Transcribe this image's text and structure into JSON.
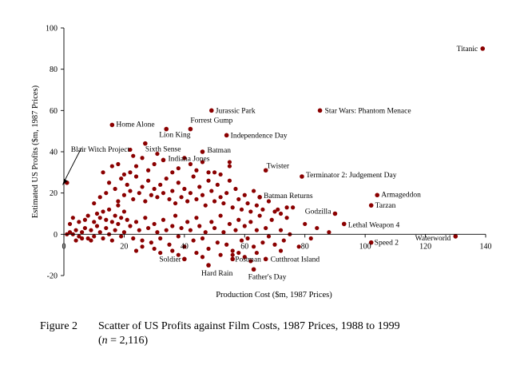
{
  "chart_data": {
    "type": "scatter",
    "xlabel": "Production Cost ($m, 1987 Prices)",
    "ylabel": "Estimated US Profits ($m, 1987 Prices)",
    "xlim": [
      0,
      140
    ],
    "ylim": [
      -20,
      100
    ],
    "xticks": [
      "0",
      "20",
      "40",
      "60",
      "80",
      "100",
      "120",
      "140"
    ],
    "yticks": [
      "-20",
      "0",
      "20",
      "40",
      "60",
      "80",
      "100"
    ],
    "grid": false,
    "marker_color": "#8b0000",
    "labeled_points": [
      {
        "name": "Titanic",
        "x": 139,
        "y": 90
      },
      {
        "name": "Jurassic Park",
        "x": 49,
        "y": 60
      },
      {
        "name": "Star Wars: Phantom Menace",
        "x": 85,
        "y": 60
      },
      {
        "name": "Home Alone",
        "x": 16,
        "y": 53
      },
      {
        "name": "Forrest Gump",
        "x": 42,
        "y": 51
      },
      {
        "name": "Lion King",
        "x": 34,
        "y": 51
      },
      {
        "name": "Independence Day",
        "x": 54,
        "y": 48
      },
      {
        "name": "Blair Witch Project",
        "x": 1,
        "y": 25
      },
      {
        "name": "Sixth Sense",
        "x": 27,
        "y": 44
      },
      {
        "name": "Batman",
        "x": 46,
        "y": 40
      },
      {
        "name": "Indiana Jones",
        "x": 33,
        "y": 36
      },
      {
        "name": "Twister",
        "x": 67,
        "y": 31
      },
      {
        "name": "Terminator 2: Judgement Day",
        "x": 79,
        "y": 28
      },
      {
        "name": "Batman Returns",
        "x": 65,
        "y": 18
      },
      {
        "name": "Armageddon",
        "x": 104,
        "y": 19
      },
      {
        "name": "Tarzan",
        "x": 102,
        "y": 14
      },
      {
        "name": "Godzilla",
        "x": 90,
        "y": 10
      },
      {
        "name": "Lethal Weapon 4",
        "x": 93,
        "y": 5
      },
      {
        "name": "Speed 2",
        "x": 102,
        "y": -4
      },
      {
        "name": "Waterworld",
        "x": 130,
        "y": -1
      },
      {
        "name": "Soldier",
        "x": 40,
        "y": -12
      },
      {
        "name": "Postman",
        "x": 56,
        "y": -12
      },
      {
        "name": "Cutthroat Island",
        "x": 67,
        "y": -12
      },
      {
        "name": "Hard Rain",
        "x": 48,
        "y": -15
      },
      {
        "name": "Father's Day",
        "x": 63,
        "y": -17
      }
    ],
    "unlabeled_points": [
      [
        1,
        0
      ],
      [
        2,
        1
      ],
      [
        3,
        0
      ],
      [
        4,
        2
      ],
      [
        5,
        -1
      ],
      [
        6,
        1
      ],
      [
        7,
        3
      ],
      [
        8,
        -2
      ],
      [
        9,
        2
      ],
      [
        10,
        -1
      ],
      [
        11,
        4
      ],
      [
        12,
        1
      ],
      [
        13,
        -2
      ],
      [
        14,
        3
      ],
      [
        15,
        0
      ],
      [
        16,
        -3
      ],
      [
        17,
        2
      ],
      [
        18,
        5
      ],
      [
        19,
        -1
      ],
      [
        20,
        1
      ],
      [
        2,
        5
      ],
      [
        3,
        8
      ],
      [
        4,
        -3
      ],
      [
        5,
        6
      ],
      [
        6,
        -2
      ],
      [
        7,
        7
      ],
      [
        8,
        9
      ],
      [
        9,
        -3
      ],
      [
        10,
        6
      ],
      [
        11,
        10
      ],
      [
        12,
        8
      ],
      [
        13,
        11
      ],
      [
        14,
        7
      ],
      [
        15,
        12
      ],
      [
        16,
        6
      ],
      [
        17,
        9
      ],
      [
        18,
        14
      ],
      [
        19,
        8
      ],
      [
        20,
        11
      ],
      [
        21,
        7
      ],
      [
        22,
        4
      ],
      [
        23,
        -2
      ],
      [
        24,
        6
      ],
      [
        25,
        2
      ],
      [
        26,
        -3
      ],
      [
        27,
        8
      ],
      [
        28,
        3
      ],
      [
        29,
        -4
      ],
      [
        30,
        5
      ],
      [
        31,
        1
      ],
      [
        32,
        -2
      ],
      [
        33,
        7
      ],
      [
        34,
        2
      ],
      [
        35,
        -5
      ],
      [
        36,
        4
      ],
      [
        37,
        9
      ],
      [
        38,
        -1
      ],
      [
        39,
        3
      ],
      [
        40,
        -6
      ],
      [
        41,
        6
      ],
      [
        42,
        2
      ],
      [
        43,
        -3
      ],
      [
        44,
        8
      ],
      [
        45,
        4
      ],
      [
        46,
        -2
      ],
      [
        47,
        1
      ],
      [
        48,
        -7
      ],
      [
        49,
        6
      ],
      [
        50,
        3
      ],
      [
        51,
        -4
      ],
      [
        52,
        9
      ],
      [
        53,
        1
      ],
      [
        54,
        -5
      ],
      [
        55,
        5
      ],
      [
        56,
        -8
      ],
      [
        57,
        2
      ],
      [
        58,
        7
      ],
      [
        59,
        -3
      ],
      [
        60,
        4
      ],
      [
        61,
        -2
      ],
      [
        62,
        6
      ],
      [
        63,
        -6
      ],
      [
        64,
        2
      ],
      [
        65,
        9
      ],
      [
        66,
        -4
      ],
      [
        67,
        3
      ],
      [
        68,
        -1
      ],
      [
        69,
        7
      ],
      [
        70,
        -5
      ],
      [
        71,
        12
      ],
      [
        72,
        2
      ],
      [
        73,
        -3
      ],
      [
        74,
        8
      ],
      [
        75,
        0
      ],
      [
        76,
        13
      ],
      [
        78,
        -6
      ],
      [
        80,
        5
      ],
      [
        82,
        -2
      ],
      [
        84,
        3
      ],
      [
        88,
        1
      ],
      [
        10,
        15
      ],
      [
        12,
        18
      ],
      [
        14,
        20
      ],
      [
        15,
        25
      ],
      [
        17,
        22
      ],
      [
        18,
        16
      ],
      [
        19,
        27
      ],
      [
        20,
        19
      ],
      [
        21,
        24
      ],
      [
        22,
        21
      ],
      [
        23,
        17
      ],
      [
        24,
        28
      ],
      [
        25,
        20
      ],
      [
        26,
        23
      ],
      [
        27,
        16
      ],
      [
        28,
        26
      ],
      [
        29,
        19
      ],
      [
        30,
        22
      ],
      [
        31,
        18
      ],
      [
        32,
        24
      ],
      [
        33,
        20
      ],
      [
        34,
        27
      ],
      [
        35,
        17
      ],
      [
        36,
        21
      ],
      [
        37,
        15
      ],
      [
        38,
        25
      ],
      [
        39,
        18
      ],
      [
        40,
        22
      ],
      [
        41,
        16
      ],
      [
        42,
        20
      ],
      [
        43,
        28
      ],
      [
        44,
        17
      ],
      [
        45,
        23
      ],
      [
        46,
        19
      ],
      [
        47,
        14
      ],
      [
        48,
        26
      ],
      [
        49,
        21
      ],
      [
        50,
        16
      ],
      [
        51,
        24
      ],
      [
        52,
        18
      ],
      [
        53,
        15
      ],
      [
        54,
        20
      ],
      [
        55,
        26
      ],
      [
        56,
        13
      ],
      [
        57,
        22
      ],
      [
        58,
        17
      ],
      [
        59,
        12
      ],
      [
        60,
        19
      ],
      [
        61,
        15
      ],
      [
        62,
        11
      ],
      [
        63,
        21
      ],
      [
        64,
        14
      ],
      [
        66,
        12
      ],
      [
        68,
        16
      ],
      [
        70,
        11
      ],
      [
        72,
        10
      ],
      [
        74,
        13
      ],
      [
        55,
        35
      ],
      [
        55,
        33
      ],
      [
        50,
        30
      ],
      [
        13,
        30
      ],
      [
        16,
        33
      ],
      [
        18,
        34
      ],
      [
        20,
        29
      ],
      [
        22,
        30
      ],
      [
        24,
        33
      ],
      [
        28,
        31
      ],
      [
        30,
        34
      ],
      [
        36,
        30
      ],
      [
        38,
        32
      ],
      [
        42,
        34
      ],
      [
        44,
        31
      ],
      [
        46,
        35
      ],
      [
        48,
        30
      ],
      [
        52,
        29
      ],
      [
        22,
        41
      ],
      [
        23,
        38
      ],
      [
        26,
        37
      ],
      [
        31,
        39
      ],
      [
        40,
        37
      ],
      [
        56,
        -10
      ],
      [
        58,
        -9
      ],
      [
        60,
        -11
      ],
      [
        62,
        -13
      ],
      [
        64,
        -9
      ],
      [
        67,
        -12
      ],
      [
        72,
        -8
      ],
      [
        52,
        -10
      ],
      [
        44,
        -9
      ],
      [
        46,
        -11
      ],
      [
        36,
        -8
      ],
      [
        38,
        -10
      ],
      [
        30,
        -7
      ],
      [
        32,
        -9
      ],
      [
        26,
        -6
      ],
      [
        24,
        -8
      ]
    ]
  },
  "caption": {
    "figure_number": "Figure 2",
    "title_line1": "Scatter of US Profits against Film Costs, 1987 Prices, 1988 to 1999",
    "n_prefix": "(",
    "n_symbol": "n",
    "n_suffix": " = 2,116)"
  }
}
